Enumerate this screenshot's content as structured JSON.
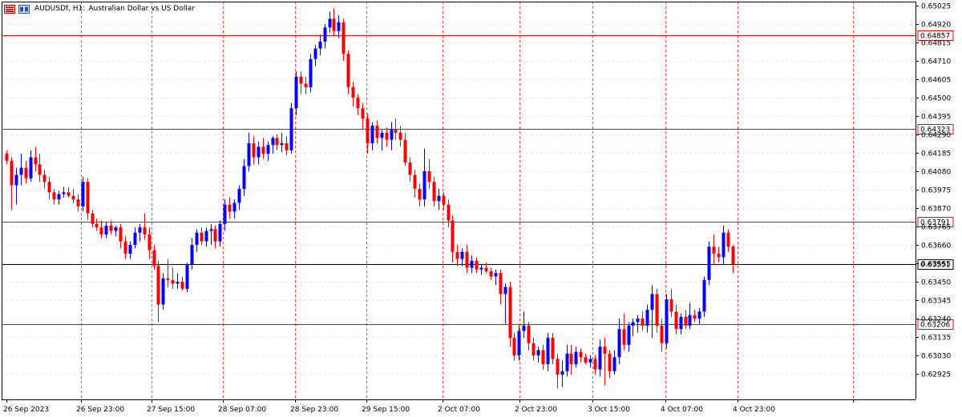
{
  "header": {
    "symbol": "AUDUSDf, H1:",
    "description": "Australian Dollar vs US Dollar"
  },
  "colors": {
    "bull": "#0000ff",
    "bear": "#ff0000",
    "level_line": "#ff0000",
    "current_line": "#000000",
    "grid": "#e6e6e6",
    "day_separator": "#ff0000"
  },
  "chart_data": {
    "type": "candlestick",
    "symbol": "AUDUSDf",
    "timeframe": "H1",
    "ylim": [
      0.62875,
      0.65025
    ],
    "price_ticks": [
      "0.65025",
      "0.64920",
      "0.64815",
      "0.64710",
      "0.64605",
      "0.64500",
      "0.64395",
      "0.64290",
      "0.64185",
      "0.64080",
      "0.63975",
      "0.63870",
      "0.63765",
      "0.63660",
      "0.63555",
      "0.63450",
      "0.63345",
      "0.63240",
      "0.63135",
      "0.63030",
      "0.62925"
    ],
    "time_labels": [
      "26 Sep 2023",
      "26 Sep 23:00",
      "27 Sep 15:00",
      "28 Sep 07:00",
      "28 Sep 23:00",
      "29 Sep 15:00",
      "2 Oct 07:00",
      "2 Oct 23:00",
      "3 Oct 15:00",
      "4 Oct 07:00",
      "4 Oct 23:00"
    ],
    "horizontal_levels": [
      "0.64857",
      "0.64323",
      "0.63791",
      "0.63206"
    ],
    "current_price": "0.63551",
    "candles": [
      {
        "o": 0.6418,
        "h": 0.642,
        "l": 0.6412,
        "c": 0.6414
      },
      {
        "o": 0.6414,
        "h": 0.6416,
        "l": 0.6386,
        "c": 0.64
      },
      {
        "o": 0.64,
        "h": 0.641,
        "l": 0.6389,
        "c": 0.6406
      },
      {
        "o": 0.6406,
        "h": 0.6418,
        "l": 0.64,
        "c": 0.641
      },
      {
        "o": 0.641,
        "h": 0.6414,
        "l": 0.6401,
        "c": 0.6404
      },
      {
        "o": 0.6404,
        "h": 0.642,
        "l": 0.6402,
        "c": 0.6416
      },
      {
        "o": 0.6416,
        "h": 0.6422,
        "l": 0.6408,
        "c": 0.6412
      },
      {
        "o": 0.6412,
        "h": 0.6418,
        "l": 0.6402,
        "c": 0.6406
      },
      {
        "o": 0.6406,
        "h": 0.6409,
        "l": 0.6398,
        "c": 0.6402
      },
      {
        "o": 0.6402,
        "h": 0.6405,
        "l": 0.6392,
        "c": 0.6396
      },
      {
        "o": 0.6396,
        "h": 0.6398,
        "l": 0.6389,
        "c": 0.6392
      },
      {
        "o": 0.6392,
        "h": 0.6397,
        "l": 0.6389,
        "c": 0.6395
      },
      {
        "o": 0.6395,
        "h": 0.6399,
        "l": 0.6393,
        "c": 0.6396
      },
      {
        "o": 0.6396,
        "h": 0.6399,
        "l": 0.6393,
        "c": 0.6394
      },
      {
        "o": 0.6394,
        "h": 0.6398,
        "l": 0.639,
        "c": 0.6392
      },
      {
        "o": 0.6392,
        "h": 0.6395,
        "l": 0.6385,
        "c": 0.6388
      },
      {
        "o": 0.6388,
        "h": 0.6405,
        "l": 0.6385,
        "c": 0.6402
      },
      {
        "o": 0.6402,
        "h": 0.6404,
        "l": 0.638,
        "c": 0.6384
      },
      {
        "o": 0.6384,
        "h": 0.6386,
        "l": 0.6376,
        "c": 0.6378
      },
      {
        "o": 0.6378,
        "h": 0.6381,
        "l": 0.6374,
        "c": 0.6376
      },
      {
        "o": 0.6376,
        "h": 0.638,
        "l": 0.637,
        "c": 0.6372
      },
      {
        "o": 0.6372,
        "h": 0.6379,
        "l": 0.637,
        "c": 0.6377
      },
      {
        "o": 0.6377,
        "h": 0.638,
        "l": 0.6372,
        "c": 0.6374
      },
      {
        "o": 0.6374,
        "h": 0.6377,
        "l": 0.6371,
        "c": 0.6376
      },
      {
        "o": 0.6376,
        "h": 0.6378,
        "l": 0.6364,
        "c": 0.6368
      },
      {
        "o": 0.6368,
        "h": 0.6371,
        "l": 0.6358,
        "c": 0.6361
      },
      {
        "o": 0.6361,
        "h": 0.6368,
        "l": 0.6358,
        "c": 0.6366
      },
      {
        "o": 0.6366,
        "h": 0.6376,
        "l": 0.6364,
        "c": 0.6373
      },
      {
        "o": 0.6373,
        "h": 0.6378,
        "l": 0.6368,
        "c": 0.6376
      },
      {
        "o": 0.6376,
        "h": 0.6384,
        "l": 0.6369,
        "c": 0.6372
      },
      {
        "o": 0.6372,
        "h": 0.6376,
        "l": 0.6358,
        "c": 0.6363
      },
      {
        "o": 0.6363,
        "h": 0.6366,
        "l": 0.6352,
        "c": 0.6354
      },
      {
        "o": 0.6354,
        "h": 0.6357,
        "l": 0.6322,
        "c": 0.6332
      },
      {
        "o": 0.6332,
        "h": 0.635,
        "l": 0.6329,
        "c": 0.6347
      },
      {
        "o": 0.6347,
        "h": 0.6358,
        "l": 0.6342,
        "c": 0.6346
      },
      {
        "o": 0.6346,
        "h": 0.6353,
        "l": 0.6341,
        "c": 0.6344
      },
      {
        "o": 0.6344,
        "h": 0.635,
        "l": 0.6341,
        "c": 0.6345
      },
      {
        "o": 0.6345,
        "h": 0.6348,
        "l": 0.634,
        "c": 0.6341
      },
      {
        "o": 0.6341,
        "h": 0.6356,
        "l": 0.6339,
        "c": 0.6355
      },
      {
        "o": 0.6355,
        "h": 0.637,
        "l": 0.6352,
        "c": 0.6366
      },
      {
        "o": 0.6366,
        "h": 0.6375,
        "l": 0.6362,
        "c": 0.6373
      },
      {
        "o": 0.6373,
        "h": 0.6376,
        "l": 0.6366,
        "c": 0.6368
      },
      {
        "o": 0.6368,
        "h": 0.6376,
        "l": 0.6365,
        "c": 0.6374
      },
      {
        "o": 0.6374,
        "h": 0.6378,
        "l": 0.6366,
        "c": 0.6375
      },
      {
        "o": 0.6375,
        "h": 0.6377,
        "l": 0.6364,
        "c": 0.6368
      },
      {
        "o": 0.6368,
        "h": 0.638,
        "l": 0.6365,
        "c": 0.6378
      },
      {
        "o": 0.6378,
        "h": 0.6392,
        "l": 0.6374,
        "c": 0.6389
      },
      {
        "o": 0.6389,
        "h": 0.6393,
        "l": 0.6381,
        "c": 0.6385
      },
      {
        "o": 0.6385,
        "h": 0.6392,
        "l": 0.6381,
        "c": 0.639
      },
      {
        "o": 0.639,
        "h": 0.64,
        "l": 0.6386,
        "c": 0.6398
      },
      {
        "o": 0.6398,
        "h": 0.6415,
        "l": 0.6394,
        "c": 0.6411
      },
      {
        "o": 0.6411,
        "h": 0.643,
        "l": 0.6408,
        "c": 0.6424
      },
      {
        "o": 0.6424,
        "h": 0.6428,
        "l": 0.6412,
        "c": 0.6416
      },
      {
        "o": 0.6416,
        "h": 0.6425,
        "l": 0.6412,
        "c": 0.6422
      },
      {
        "o": 0.6422,
        "h": 0.6427,
        "l": 0.6415,
        "c": 0.6418
      },
      {
        "o": 0.6418,
        "h": 0.6425,
        "l": 0.6414,
        "c": 0.6423
      },
      {
        "o": 0.6423,
        "h": 0.6428,
        "l": 0.6418,
        "c": 0.6427
      },
      {
        "o": 0.6427,
        "h": 0.6429,
        "l": 0.642,
        "c": 0.6423
      },
      {
        "o": 0.6423,
        "h": 0.643,
        "l": 0.6419,
        "c": 0.6424
      },
      {
        "o": 0.6424,
        "h": 0.6428,
        "l": 0.6417,
        "c": 0.642
      },
      {
        "o": 0.642,
        "h": 0.6447,
        "l": 0.6418,
        "c": 0.6444
      },
      {
        "o": 0.6444,
        "h": 0.6465,
        "l": 0.644,
        "c": 0.6462
      },
      {
        "o": 0.6462,
        "h": 0.6465,
        "l": 0.6452,
        "c": 0.6458
      },
      {
        "o": 0.6458,
        "h": 0.6462,
        "l": 0.6452,
        "c": 0.6456
      },
      {
        "o": 0.6456,
        "h": 0.6475,
        "l": 0.6453,
        "c": 0.6472
      },
      {
        "o": 0.6472,
        "h": 0.648,
        "l": 0.6468,
        "c": 0.6478
      },
      {
        "o": 0.6478,
        "h": 0.6486,
        "l": 0.6474,
        "c": 0.6482
      },
      {
        "o": 0.6482,
        "h": 0.6492,
        "l": 0.6478,
        "c": 0.649
      },
      {
        "o": 0.649,
        "h": 0.6499,
        "l": 0.6487,
        "c": 0.6495
      },
      {
        "o": 0.6495,
        "h": 0.6501,
        "l": 0.6485,
        "c": 0.6488
      },
      {
        "o": 0.6488,
        "h": 0.6497,
        "l": 0.6484,
        "c": 0.6493
      },
      {
        "o": 0.6493,
        "h": 0.6495,
        "l": 0.6471,
        "c": 0.6475
      },
      {
        "o": 0.6475,
        "h": 0.6477,
        "l": 0.6452,
        "c": 0.6456
      },
      {
        "o": 0.6456,
        "h": 0.6459,
        "l": 0.6445,
        "c": 0.645
      },
      {
        "o": 0.645,
        "h": 0.6452,
        "l": 0.644,
        "c": 0.6444
      },
      {
        "o": 0.6444,
        "h": 0.6447,
        "l": 0.6432,
        "c": 0.6438
      },
      {
        "o": 0.6438,
        "h": 0.6441,
        "l": 0.6418,
        "c": 0.6424
      },
      {
        "o": 0.6424,
        "h": 0.6436,
        "l": 0.642,
        "c": 0.6434
      },
      {
        "o": 0.6434,
        "h": 0.6437,
        "l": 0.6424,
        "c": 0.6427
      },
      {
        "o": 0.6427,
        "h": 0.6432,
        "l": 0.642,
        "c": 0.643
      },
      {
        "o": 0.643,
        "h": 0.6433,
        "l": 0.6422,
        "c": 0.6426
      },
      {
        "o": 0.6426,
        "h": 0.6436,
        "l": 0.642,
        "c": 0.6432
      },
      {
        "o": 0.6432,
        "h": 0.6438,
        "l": 0.6426,
        "c": 0.643
      },
      {
        "o": 0.643,
        "h": 0.6434,
        "l": 0.6422,
        "c": 0.6426
      },
      {
        "o": 0.6426,
        "h": 0.643,
        "l": 0.6411,
        "c": 0.6413
      },
      {
        "o": 0.6413,
        "h": 0.6416,
        "l": 0.6402,
        "c": 0.6406
      },
      {
        "o": 0.6406,
        "h": 0.6409,
        "l": 0.6393,
        "c": 0.6398
      },
      {
        "o": 0.6398,
        "h": 0.6401,
        "l": 0.6388,
        "c": 0.6392
      },
      {
        "o": 0.6392,
        "h": 0.6421,
        "l": 0.6388,
        "c": 0.6408
      },
      {
        "o": 0.6408,
        "h": 0.6415,
        "l": 0.6398,
        "c": 0.6402
      },
      {
        "o": 0.6402,
        "h": 0.6405,
        "l": 0.6388,
        "c": 0.6391
      },
      {
        "o": 0.6391,
        "h": 0.6398,
        "l": 0.6386,
        "c": 0.6394
      },
      {
        "o": 0.6394,
        "h": 0.6396,
        "l": 0.6386,
        "c": 0.6389
      },
      {
        "o": 0.6389,
        "h": 0.6392,
        "l": 0.6376,
        "c": 0.638
      },
      {
        "o": 0.638,
        "h": 0.6383,
        "l": 0.6356,
        "c": 0.6362
      },
      {
        "o": 0.6362,
        "h": 0.6366,
        "l": 0.6354,
        "c": 0.6358
      },
      {
        "o": 0.6358,
        "h": 0.6364,
        "l": 0.6354,
        "c": 0.6362
      },
      {
        "o": 0.6362,
        "h": 0.6366,
        "l": 0.635,
        "c": 0.6353
      },
      {
        "o": 0.6353,
        "h": 0.636,
        "l": 0.635,
        "c": 0.6357
      },
      {
        "o": 0.6357,
        "h": 0.6359,
        "l": 0.635,
        "c": 0.6352
      },
      {
        "o": 0.6352,
        "h": 0.6355,
        "l": 0.6349,
        "c": 0.6353
      },
      {
        "o": 0.6353,
        "h": 0.6356,
        "l": 0.635,
        "c": 0.6351
      },
      {
        "o": 0.6351,
        "h": 0.6353,
        "l": 0.6346,
        "c": 0.6348
      },
      {
        "o": 0.6348,
        "h": 0.6352,
        "l": 0.6343,
        "c": 0.635
      },
      {
        "o": 0.635,
        "h": 0.6352,
        "l": 0.6332,
        "c": 0.6338
      },
      {
        "o": 0.6338,
        "h": 0.6344,
        "l": 0.6321,
        "c": 0.6342
      },
      {
        "o": 0.6342,
        "h": 0.6345,
        "l": 0.6308,
        "c": 0.6313
      },
      {
        "o": 0.6313,
        "h": 0.6316,
        "l": 0.63,
        "c": 0.6303
      },
      {
        "o": 0.6303,
        "h": 0.632,
        "l": 0.63,
        "c": 0.6317
      },
      {
        "o": 0.6317,
        "h": 0.6328,
        "l": 0.6313,
        "c": 0.632
      },
      {
        "o": 0.632,
        "h": 0.6322,
        "l": 0.6306,
        "c": 0.631
      },
      {
        "o": 0.631,
        "h": 0.6313,
        "l": 0.63,
        "c": 0.6303
      },
      {
        "o": 0.6303,
        "h": 0.6308,
        "l": 0.6299,
        "c": 0.6306
      },
      {
        "o": 0.6306,
        "h": 0.6309,
        "l": 0.6295,
        "c": 0.6298
      },
      {
        "o": 0.6298,
        "h": 0.6316,
        "l": 0.6294,
        "c": 0.6313
      },
      {
        "o": 0.6313,
        "h": 0.6316,
        "l": 0.6298,
        "c": 0.6301
      },
      {
        "o": 0.6301,
        "h": 0.6304,
        "l": 0.6284,
        "c": 0.6292
      },
      {
        "o": 0.6292,
        "h": 0.63,
        "l": 0.6285,
        "c": 0.6294
      },
      {
        "o": 0.6294,
        "h": 0.6309,
        "l": 0.6291,
        "c": 0.6304
      },
      {
        "o": 0.6304,
        "h": 0.6309,
        "l": 0.6292,
        "c": 0.6298
      },
      {
        "o": 0.6298,
        "h": 0.6308,
        "l": 0.6296,
        "c": 0.6305
      },
      {
        "o": 0.6305,
        "h": 0.6307,
        "l": 0.6299,
        "c": 0.6302
      },
      {
        "o": 0.6302,
        "h": 0.6304,
        "l": 0.6298,
        "c": 0.6299
      },
      {
        "o": 0.6299,
        "h": 0.6303,
        "l": 0.6296,
        "c": 0.6301
      },
      {
        "o": 0.6301,
        "h": 0.6303,
        "l": 0.6292,
        "c": 0.6295
      },
      {
        "o": 0.6295,
        "h": 0.6312,
        "l": 0.6291,
        "c": 0.6308
      },
      {
        "o": 0.6308,
        "h": 0.6313,
        "l": 0.6286,
        "c": 0.6304
      },
      {
        "o": 0.6304,
        "h": 0.6306,
        "l": 0.629,
        "c": 0.6294
      },
      {
        "o": 0.6294,
        "h": 0.6306,
        "l": 0.6292,
        "c": 0.6302
      },
      {
        "o": 0.6302,
        "h": 0.6324,
        "l": 0.6298,
        "c": 0.6318
      },
      {
        "o": 0.6318,
        "h": 0.6327,
        "l": 0.6306,
        "c": 0.6309
      },
      {
        "o": 0.6309,
        "h": 0.6322,
        "l": 0.6305,
        "c": 0.632
      },
      {
        "o": 0.632,
        "h": 0.6324,
        "l": 0.6314,
        "c": 0.6322
      },
      {
        "o": 0.6322,
        "h": 0.6326,
        "l": 0.6316,
        "c": 0.6324
      },
      {
        "o": 0.6324,
        "h": 0.6328,
        "l": 0.6317,
        "c": 0.632
      },
      {
        "o": 0.632,
        "h": 0.6332,
        "l": 0.6316,
        "c": 0.6329
      },
      {
        "o": 0.6329,
        "h": 0.6343,
        "l": 0.6313,
        "c": 0.6338
      },
      {
        "o": 0.6338,
        "h": 0.6341,
        "l": 0.6316,
        "c": 0.632
      },
      {
        "o": 0.632,
        "h": 0.6324,
        "l": 0.6305,
        "c": 0.631
      },
      {
        "o": 0.631,
        "h": 0.6338,
        "l": 0.6307,
        "c": 0.6335
      },
      {
        "o": 0.6335,
        "h": 0.6341,
        "l": 0.6325,
        "c": 0.6328
      },
      {
        "o": 0.6328,
        "h": 0.6332,
        "l": 0.6315,
        "c": 0.6318
      },
      {
        "o": 0.6318,
        "h": 0.6327,
        "l": 0.6315,
        "c": 0.6325
      },
      {
        "o": 0.6325,
        "h": 0.6329,
        "l": 0.6318,
        "c": 0.632
      },
      {
        "o": 0.632,
        "h": 0.6333,
        "l": 0.6318,
        "c": 0.6326
      },
      {
        "o": 0.6326,
        "h": 0.6329,
        "l": 0.6322,
        "c": 0.6324
      },
      {
        "o": 0.6324,
        "h": 0.633,
        "l": 0.6321,
        "c": 0.6328
      },
      {
        "o": 0.6328,
        "h": 0.6348,
        "l": 0.6325,
        "c": 0.6346
      },
      {
        "o": 0.6346,
        "h": 0.6368,
        "l": 0.6343,
        "c": 0.6365
      },
      {
        "o": 0.6365,
        "h": 0.6372,
        "l": 0.6355,
        "c": 0.6361
      },
      {
        "o": 0.6361,
        "h": 0.6365,
        "l": 0.6356,
        "c": 0.6359
      },
      {
        "o": 0.6359,
        "h": 0.6377,
        "l": 0.6355,
        "c": 0.6373
      },
      {
        "o": 0.6373,
        "h": 0.6375,
        "l": 0.6362,
        "c": 0.6365
      },
      {
        "o": 0.6365,
        "h": 0.6366,
        "l": 0.635,
        "c": 0.6355
      }
    ]
  }
}
